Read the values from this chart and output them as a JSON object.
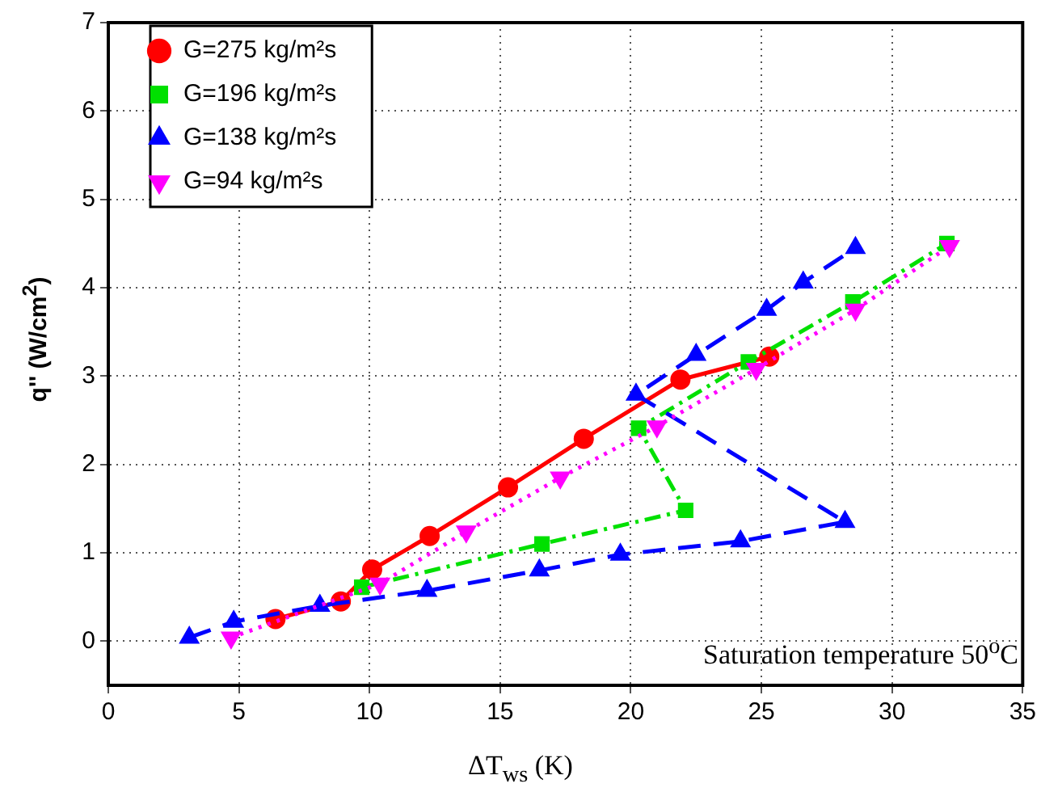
{
  "chart_data": {
    "type": "line",
    "xlabel": "ΔT$_{ws}$ (K)",
    "ylabel": "q'' (W/cm$^{2}$)",
    "xlim": [
      0,
      35
    ],
    "xticks": [
      0,
      5,
      10,
      15,
      20,
      25,
      30,
      35
    ],
    "ylim": [
      -0.5,
      7
    ],
    "yticks": [
      0,
      1,
      2,
      3,
      4,
      5,
      6,
      7
    ],
    "grid": true,
    "legend": "top left",
    "annotations": [
      "Saturation temperature 50$^{o}$C"
    ],
    "series": [
      {
        "name": "G=275 kg/m²s",
        "color": "#ff0000",
        "marker": "circle",
        "line_style": "solid",
        "x": [
          6.4,
          8.9,
          10.1,
          12.3,
          15.3,
          18.2,
          21.9,
          25.3
        ],
        "values": [
          0.25,
          0.45,
          0.81,
          1.19,
          1.74,
          2.29,
          2.96,
          3.22
        ]
      },
      {
        "name": "G=196 kg/m²s",
        "color": "#00e000",
        "marker": "square",
        "line_style": "dashdot",
        "x": [
          9.7,
          16.6,
          22.1,
          20.3,
          24.5,
          28.5,
          32.1
        ],
        "values": [
          0.61,
          1.1,
          1.48,
          2.41,
          3.16,
          3.84,
          4.5
        ]
      },
      {
        "name": "G=138 kg/m²s",
        "color": "#0000ff",
        "marker": "triangle",
        "line_style": "dashed",
        "x": [
          3.1,
          4.8,
          8.1,
          12.2,
          16.5,
          19.6,
          24.2,
          28.2,
          20.2,
          22.5,
          25.2,
          26.6,
          28.6
        ],
        "values": [
          0.04,
          0.22,
          0.4,
          0.57,
          0.8,
          0.98,
          1.13,
          1.35,
          2.79,
          3.24,
          3.75,
          4.06,
          4.45
        ]
      },
      {
        "name": "G=94 kg/m²s",
        "color": "#ff00ff",
        "marker": "triangle-down",
        "line_style": "dotted",
        "x": [
          4.7,
          10.4,
          13.7,
          17.3,
          21.0,
          24.8,
          28.6,
          32.2
        ],
        "values": [
          0.04,
          0.65,
          1.24,
          1.85,
          2.43,
          3.08,
          3.75,
          4.47
        ]
      }
    ]
  }
}
